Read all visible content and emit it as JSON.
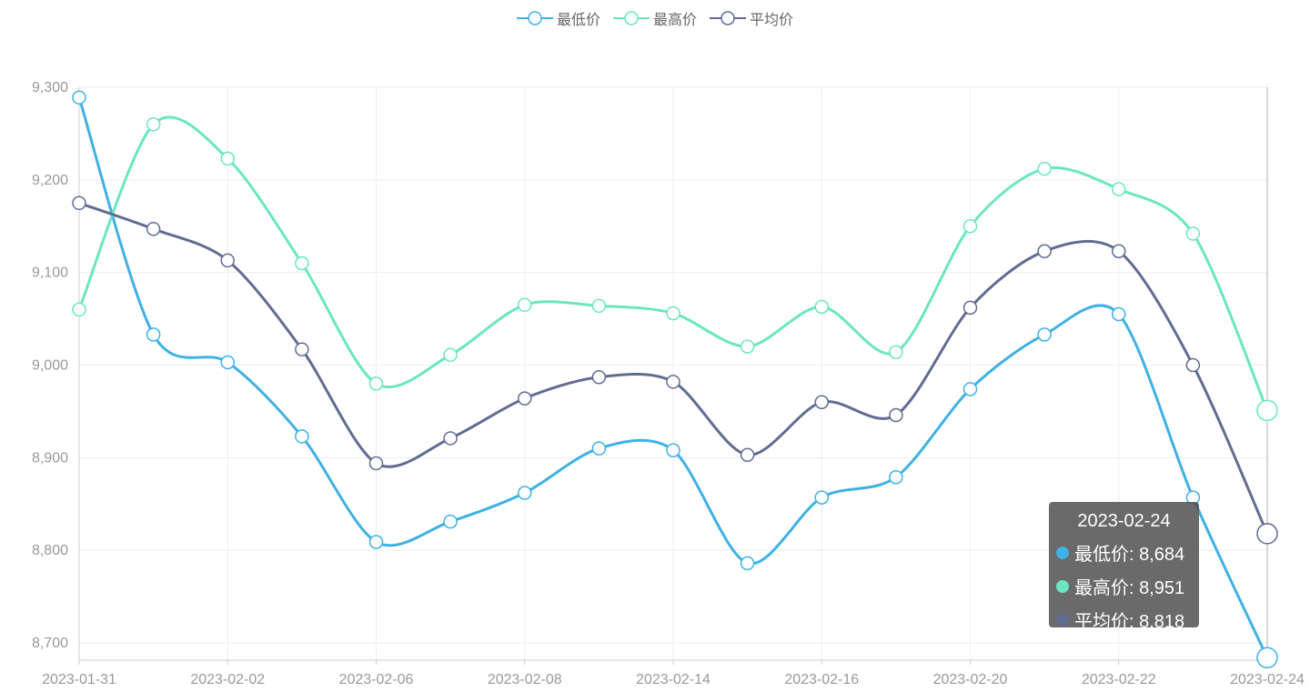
{
  "legend": [
    {
      "name": "最低价",
      "color": "#3fb1e3"
    },
    {
      "name": "最高价",
      "color": "#6be6c1"
    },
    {
      "name": "平均价",
      "color": "#626c91"
    }
  ],
  "tooltip": {
    "date": "2023-02-24",
    "rows": [
      {
        "label": "最低价: 8,684",
        "color": "#3fb1e3"
      },
      {
        "label": "最高价: 8,951",
        "color": "#6be6c1"
      },
      {
        "label": "平均价: 8,818",
        "color": "#626c91"
      }
    ]
  },
  "chart_data": {
    "type": "line",
    "smooth": true,
    "grid": true,
    "legend_position": "top-center",
    "ylim": [
      8690,
      9300
    ],
    "yticks": [
      "9,300",
      "9,200",
      "9,100",
      "9,000",
      "8,900",
      "8,800",
      "8,700"
    ],
    "ytick_values": [
      9300,
      9200,
      9100,
      9000,
      8900,
      8800,
      8700
    ],
    "xtick_labels": [
      "2023-01-31",
      "2023-02-02",
      "2023-02-06",
      "2023-02-08",
      "2023-02-14",
      "2023-02-16",
      "2023-02-20",
      "2023-02-22",
      "2023-02-24"
    ],
    "x": [
      "2023-01-31",
      "",
      "2023-02-02",
      "",
      "2023-02-06",
      "",
      "2023-02-08",
      "",
      "2023-02-14",
      "",
      "2023-02-16",
      "",
      "2023-02-20",
      "",
      "2023-02-22",
      "",
      "2023-02-24"
    ],
    "series": [
      {
        "name": "最低价",
        "color": "#3fb1e3",
        "values": [
          9289,
          9033,
          9003,
          8923,
          8809,
          8831,
          8862,
          8910,
          8908,
          8786,
          8857,
          8879,
          8974,
          9033,
          9055,
          8857,
          8684
        ]
      },
      {
        "name": "最高价",
        "color": "#6be6c1",
        "values": [
          9060,
          9260,
          9223,
          9110,
          8980,
          9011,
          9065,
          9064,
          9056,
          9020,
          9063,
          9014,
          9150,
          9212,
          9190,
          9142,
          8951
        ]
      },
      {
        "name": "平均价",
        "color": "#626c91",
        "values": [
          9175,
          9147,
          9113,
          9017,
          8894,
          8921,
          8964,
          8987,
          8982,
          8903,
          8960,
          8946,
          9062,
          9123,
          9123,
          9000,
          8818
        ]
      }
    ],
    "highlight_index": 16
  }
}
